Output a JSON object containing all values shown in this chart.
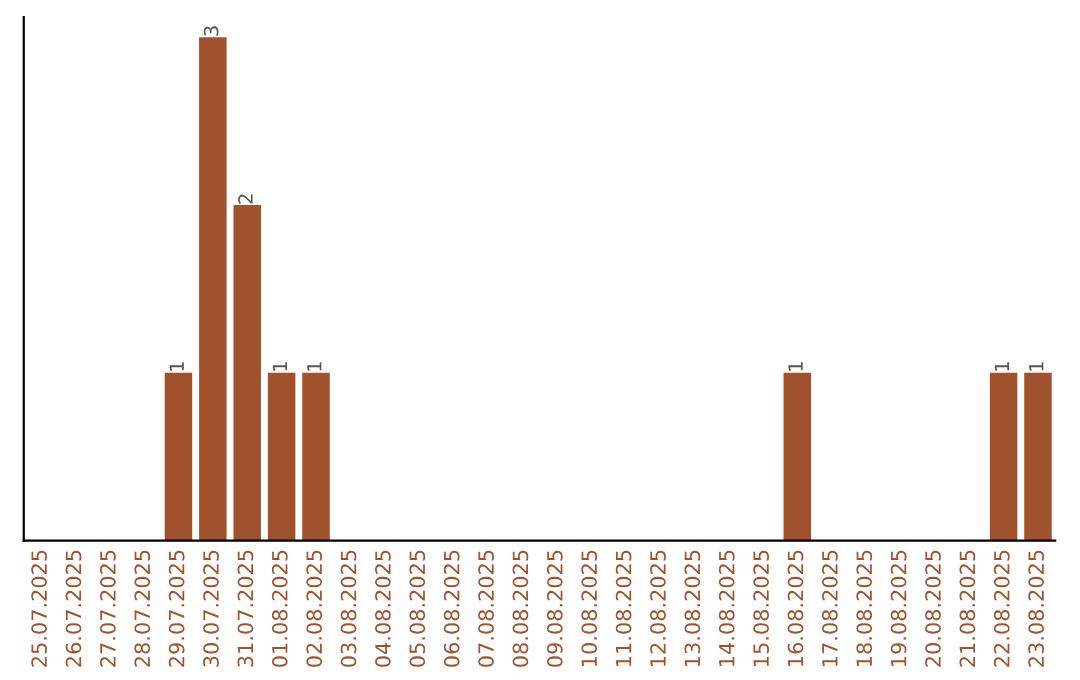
{
  "chart_data": {
    "type": "bar",
    "categories": [
      "25.07.2025",
      "26.07.2025",
      "27.07.2025",
      "28.07.2025",
      "29.07.2025",
      "30.07.2025",
      "31.07.2025",
      "01.08.2025",
      "02.08.2025",
      "03.08.2025",
      "04.08.2025",
      "05.08.2025",
      "06.08.2025",
      "07.08.2025",
      "08.08.2025",
      "09.08.2025",
      "10.08.2025",
      "11.08.2025",
      "12.08.2025",
      "13.08.2025",
      "14.08.2025",
      "15.08.2025",
      "16.08.2025",
      "17.08.2025",
      "18.08.2025",
      "19.08.2025",
      "20.08.2025",
      "21.08.2025",
      "22.08.2025",
      "23.08.2025"
    ],
    "values": [
      0,
      0,
      0,
      0,
      1,
      3,
      2,
      1,
      1,
      0,
      0,
      0,
      0,
      0,
      0,
      0,
      0,
      0,
      0,
      0,
      0,
      0,
      1,
      0,
      0,
      0,
      0,
      0,
      1,
      1
    ],
    "value_labels": [
      null,
      null,
      null,
      null,
      "1",
      "3",
      "2",
      "1",
      "1",
      null,
      null,
      null,
      null,
      null,
      null,
      null,
      null,
      null,
      null,
      null,
      null,
      null,
      "1",
      null,
      null,
      null,
      null,
      null,
      "1",
      "1"
    ],
    "color": "#a0522d",
    "grid": false,
    "legend": false
  }
}
